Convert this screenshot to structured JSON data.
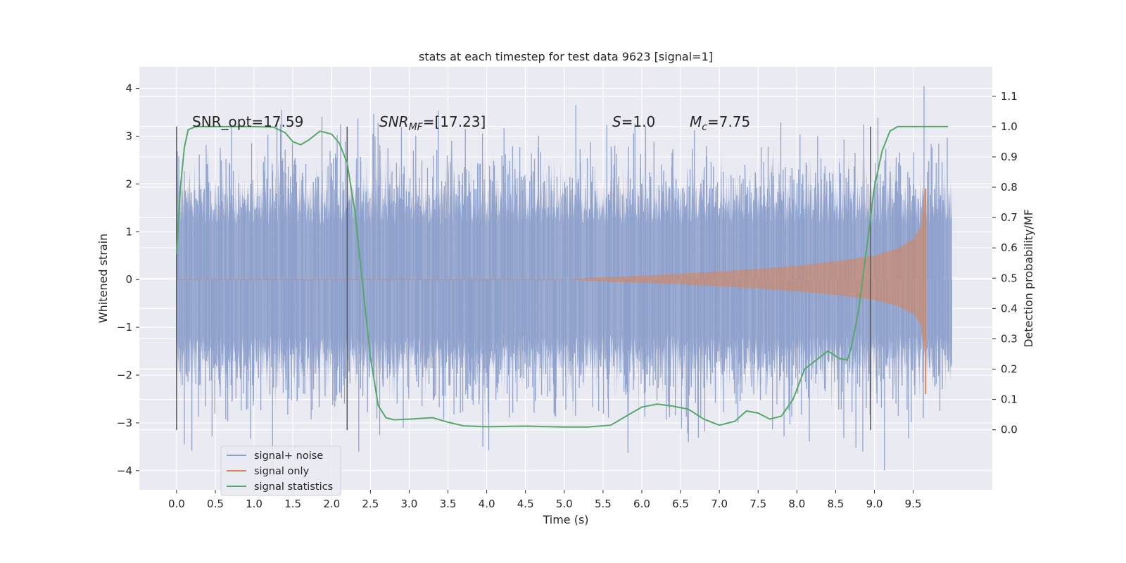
{
  "chart_data": {
    "type": "line",
    "title": "stats at each timestep for test data 9623 [signal=1]",
    "xlabel": "Time (s)",
    "ylabel_left": "Whitened strain",
    "ylabel_right": "Detection probability/MF",
    "xlim": [
      -0.48,
      10.52
    ],
    "ylim_left": [
      -4.4,
      4.45
    ],
    "ylim_right": [
      -0.198,
      1.197
    ],
    "x_ticks": [
      "0.0",
      "0.5",
      "1.0",
      "1.5",
      "2.0",
      "2.5",
      "3.0",
      "3.5",
      "4.0",
      "4.5",
      "5.0",
      "5.5",
      "6.0",
      "6.5",
      "7.0",
      "7.5",
      "8.0",
      "8.5",
      "9.0",
      "9.5"
    ],
    "y_ticks_left": [
      "4",
      "3",
      "2",
      "1",
      "0",
      "−1",
      "−2",
      "−3",
      "−4"
    ],
    "y_ticks_right": [
      "1.1",
      "1.0",
      "0.9",
      "0.8",
      "0.7",
      "0.6",
      "0.5",
      "0.4",
      "0.3",
      "0.2",
      "0.1",
      "0.0"
    ],
    "grid": true,
    "legend_position": "lower-left",
    "annotations": {
      "snr_opt": "SNR_opt=17.59",
      "snr_mf_sym": "SNR",
      "snr_mf_sub": "MF",
      "snr_mf_val": "=[17.23]",
      "s_sym": "S",
      "s_val": "=1.0",
      "mc_sym": "M",
      "mc_sub": "c",
      "mc_val": "=7.75"
    },
    "vertical_markers": {
      "x": [
        0.0,
        2.2,
        8.95
      ],
      "y_range": [
        -3.15,
        3.2
      ]
    },
    "series": [
      {
        "name": "signal+ noise",
        "color": "#8da0cb",
        "description_kind": "noise_band",
        "x_range": [
          0.0,
          10.0
        ],
        "typical_range": [
          -2.3,
          2.4
        ],
        "min": -4.0,
        "max": 4.05
      },
      {
        "name": "signal only",
        "color": "#dd8452",
        "description_kind": "chirp_envelope",
        "points": [
          [
            5.0,
            0.0
          ],
          [
            5.5,
            0.05
          ],
          [
            6.0,
            0.08
          ],
          [
            6.5,
            0.12
          ],
          [
            7.0,
            0.17
          ],
          [
            7.5,
            0.22
          ],
          [
            8.0,
            0.29
          ],
          [
            8.5,
            0.38
          ],
          [
            9.0,
            0.5
          ],
          [
            9.3,
            0.65
          ],
          [
            9.5,
            0.85
          ],
          [
            9.6,
            1.1
          ],
          [
            9.65,
            1.9
          ]
        ],
        "end_x": 9.66
      },
      {
        "name": "signal statistics",
        "color": "#55a868",
        "points": [
          [
            0.0,
            0.58
          ],
          [
            0.05,
            0.8
          ],
          [
            0.1,
            0.93
          ],
          [
            0.15,
            0.99
          ],
          [
            0.25,
            1.0
          ],
          [
            0.5,
            1.0
          ],
          [
            1.0,
            1.0
          ],
          [
            1.25,
            0.998
          ],
          [
            1.4,
            0.98
          ],
          [
            1.5,
            0.95
          ],
          [
            1.6,
            0.94
          ],
          [
            1.7,
            0.955
          ],
          [
            1.85,
            0.985
          ],
          [
            2.0,
            0.975
          ],
          [
            2.1,
            0.945
          ],
          [
            2.2,
            0.88
          ],
          [
            2.3,
            0.72
          ],
          [
            2.4,
            0.48
          ],
          [
            2.5,
            0.24
          ],
          [
            2.6,
            0.08
          ],
          [
            2.7,
            0.04
          ],
          [
            2.8,
            0.033
          ],
          [
            3.0,
            0.035
          ],
          [
            3.3,
            0.04
          ],
          [
            3.5,
            0.025
          ],
          [
            3.7,
            0.013
          ],
          [
            4.0,
            0.01
          ],
          [
            4.5,
            0.012
          ],
          [
            5.0,
            0.009
          ],
          [
            5.3,
            0.009
          ],
          [
            5.6,
            0.015
          ],
          [
            5.8,
            0.045
          ],
          [
            6.0,
            0.075
          ],
          [
            6.2,
            0.085
          ],
          [
            6.4,
            0.078
          ],
          [
            6.6,
            0.068
          ],
          [
            6.8,
            0.035
          ],
          [
            7.0,
            0.015
          ],
          [
            7.2,
            0.028
          ],
          [
            7.35,
            0.062
          ],
          [
            7.5,
            0.055
          ],
          [
            7.65,
            0.035
          ],
          [
            7.8,
            0.045
          ],
          [
            7.95,
            0.1
          ],
          [
            8.1,
            0.2
          ],
          [
            8.25,
            0.23
          ],
          [
            8.4,
            0.26
          ],
          [
            8.55,
            0.235
          ],
          [
            8.65,
            0.23
          ],
          [
            8.7,
            0.27
          ],
          [
            8.8,
            0.4
          ],
          [
            8.9,
            0.6
          ],
          [
            9.0,
            0.8
          ],
          [
            9.1,
            0.92
          ],
          [
            9.2,
            0.985
          ],
          [
            9.3,
            1.0
          ],
          [
            9.5,
            1.0
          ],
          [
            9.95,
            1.0
          ]
        ]
      }
    ]
  }
}
